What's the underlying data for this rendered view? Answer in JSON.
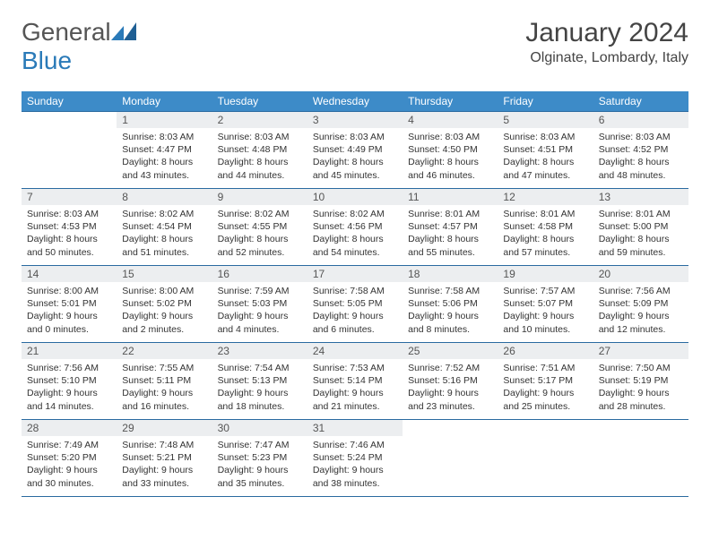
{
  "logo": {
    "text_prefix": "General",
    "text_suffix": "Blue"
  },
  "title": "January 2024",
  "location": "Olginate, Lombardy, Italy",
  "colors": {
    "header_bg": "#3d8bc8",
    "header_fg": "#ffffff",
    "daynum_bg": "#eceef0",
    "rule": "#2a6aa0",
    "logo_blue": "#2a7ab8"
  },
  "weekdays": [
    "Sunday",
    "Monday",
    "Tuesday",
    "Wednesday",
    "Thursday",
    "Friday",
    "Saturday"
  ],
  "weeks": [
    [
      {
        "n": "",
        "lines": [
          "",
          "",
          "",
          ""
        ]
      },
      {
        "n": "1",
        "lines": [
          "Sunrise: 8:03 AM",
          "Sunset: 4:47 PM",
          "Daylight: 8 hours",
          "and 43 minutes."
        ]
      },
      {
        "n": "2",
        "lines": [
          "Sunrise: 8:03 AM",
          "Sunset: 4:48 PM",
          "Daylight: 8 hours",
          "and 44 minutes."
        ]
      },
      {
        "n": "3",
        "lines": [
          "Sunrise: 8:03 AM",
          "Sunset: 4:49 PM",
          "Daylight: 8 hours",
          "and 45 minutes."
        ]
      },
      {
        "n": "4",
        "lines": [
          "Sunrise: 8:03 AM",
          "Sunset: 4:50 PM",
          "Daylight: 8 hours",
          "and 46 minutes."
        ]
      },
      {
        "n": "5",
        "lines": [
          "Sunrise: 8:03 AM",
          "Sunset: 4:51 PM",
          "Daylight: 8 hours",
          "and 47 minutes."
        ]
      },
      {
        "n": "6",
        "lines": [
          "Sunrise: 8:03 AM",
          "Sunset: 4:52 PM",
          "Daylight: 8 hours",
          "and 48 minutes."
        ]
      }
    ],
    [
      {
        "n": "7",
        "lines": [
          "Sunrise: 8:03 AM",
          "Sunset: 4:53 PM",
          "Daylight: 8 hours",
          "and 50 minutes."
        ]
      },
      {
        "n": "8",
        "lines": [
          "Sunrise: 8:02 AM",
          "Sunset: 4:54 PM",
          "Daylight: 8 hours",
          "and 51 minutes."
        ]
      },
      {
        "n": "9",
        "lines": [
          "Sunrise: 8:02 AM",
          "Sunset: 4:55 PM",
          "Daylight: 8 hours",
          "and 52 minutes."
        ]
      },
      {
        "n": "10",
        "lines": [
          "Sunrise: 8:02 AM",
          "Sunset: 4:56 PM",
          "Daylight: 8 hours",
          "and 54 minutes."
        ]
      },
      {
        "n": "11",
        "lines": [
          "Sunrise: 8:01 AM",
          "Sunset: 4:57 PM",
          "Daylight: 8 hours",
          "and 55 minutes."
        ]
      },
      {
        "n": "12",
        "lines": [
          "Sunrise: 8:01 AM",
          "Sunset: 4:58 PM",
          "Daylight: 8 hours",
          "and 57 minutes."
        ]
      },
      {
        "n": "13",
        "lines": [
          "Sunrise: 8:01 AM",
          "Sunset: 5:00 PM",
          "Daylight: 8 hours",
          "and 59 minutes."
        ]
      }
    ],
    [
      {
        "n": "14",
        "lines": [
          "Sunrise: 8:00 AM",
          "Sunset: 5:01 PM",
          "Daylight: 9 hours",
          "and 0 minutes."
        ]
      },
      {
        "n": "15",
        "lines": [
          "Sunrise: 8:00 AM",
          "Sunset: 5:02 PM",
          "Daylight: 9 hours",
          "and 2 minutes."
        ]
      },
      {
        "n": "16",
        "lines": [
          "Sunrise: 7:59 AM",
          "Sunset: 5:03 PM",
          "Daylight: 9 hours",
          "and 4 minutes."
        ]
      },
      {
        "n": "17",
        "lines": [
          "Sunrise: 7:58 AM",
          "Sunset: 5:05 PM",
          "Daylight: 9 hours",
          "and 6 minutes."
        ]
      },
      {
        "n": "18",
        "lines": [
          "Sunrise: 7:58 AM",
          "Sunset: 5:06 PM",
          "Daylight: 9 hours",
          "and 8 minutes."
        ]
      },
      {
        "n": "19",
        "lines": [
          "Sunrise: 7:57 AM",
          "Sunset: 5:07 PM",
          "Daylight: 9 hours",
          "and 10 minutes."
        ]
      },
      {
        "n": "20",
        "lines": [
          "Sunrise: 7:56 AM",
          "Sunset: 5:09 PM",
          "Daylight: 9 hours",
          "and 12 minutes."
        ]
      }
    ],
    [
      {
        "n": "21",
        "lines": [
          "Sunrise: 7:56 AM",
          "Sunset: 5:10 PM",
          "Daylight: 9 hours",
          "and 14 minutes."
        ]
      },
      {
        "n": "22",
        "lines": [
          "Sunrise: 7:55 AM",
          "Sunset: 5:11 PM",
          "Daylight: 9 hours",
          "and 16 minutes."
        ]
      },
      {
        "n": "23",
        "lines": [
          "Sunrise: 7:54 AM",
          "Sunset: 5:13 PM",
          "Daylight: 9 hours",
          "and 18 minutes."
        ]
      },
      {
        "n": "24",
        "lines": [
          "Sunrise: 7:53 AM",
          "Sunset: 5:14 PM",
          "Daylight: 9 hours",
          "and 21 minutes."
        ]
      },
      {
        "n": "25",
        "lines": [
          "Sunrise: 7:52 AM",
          "Sunset: 5:16 PM",
          "Daylight: 9 hours",
          "and 23 minutes."
        ]
      },
      {
        "n": "26",
        "lines": [
          "Sunrise: 7:51 AM",
          "Sunset: 5:17 PM",
          "Daylight: 9 hours",
          "and 25 minutes."
        ]
      },
      {
        "n": "27",
        "lines": [
          "Sunrise: 7:50 AM",
          "Sunset: 5:19 PM",
          "Daylight: 9 hours",
          "and 28 minutes."
        ]
      }
    ],
    [
      {
        "n": "28",
        "lines": [
          "Sunrise: 7:49 AM",
          "Sunset: 5:20 PM",
          "Daylight: 9 hours",
          "and 30 minutes."
        ]
      },
      {
        "n": "29",
        "lines": [
          "Sunrise: 7:48 AM",
          "Sunset: 5:21 PM",
          "Daylight: 9 hours",
          "and 33 minutes."
        ]
      },
      {
        "n": "30",
        "lines": [
          "Sunrise: 7:47 AM",
          "Sunset: 5:23 PM",
          "Daylight: 9 hours",
          "and 35 minutes."
        ]
      },
      {
        "n": "31",
        "lines": [
          "Sunrise: 7:46 AM",
          "Sunset: 5:24 PM",
          "Daylight: 9 hours",
          "and 38 minutes."
        ]
      },
      {
        "n": "",
        "lines": [
          "",
          "",
          "",
          ""
        ]
      },
      {
        "n": "",
        "lines": [
          "",
          "",
          "",
          ""
        ]
      },
      {
        "n": "",
        "lines": [
          "",
          "",
          "",
          ""
        ]
      }
    ]
  ]
}
